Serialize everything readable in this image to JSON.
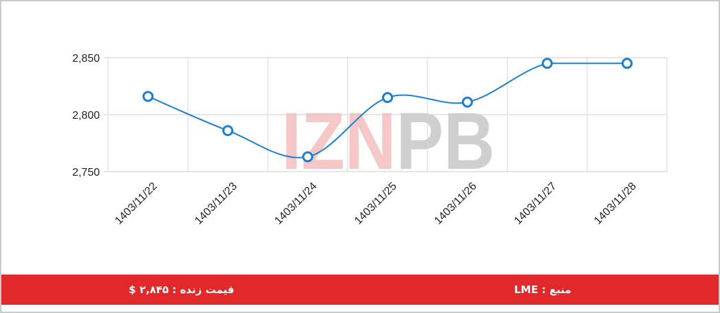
{
  "chart_data": {
    "type": "line",
    "categories": [
      "1403/11/22",
      "1403/11/23",
      "1403/11/24",
      "1403/11/25",
      "1403/11/26",
      "1403/11/27",
      "1403/11/28"
    ],
    "values": [
      2816,
      2786,
      2763,
      2815,
      2811,
      2845,
      2845
    ],
    "ylim": [
      2750,
      2850
    ],
    "yticks": [
      2750,
      2800,
      2850
    ],
    "ytick_labels": [
      "2,750",
      "2,800",
      "2,850"
    ],
    "grid": true,
    "smooth": true,
    "line_color": "#1a7fd4",
    "marker_fill": "#ffffff",
    "watermark": "IZNPB",
    "watermark_colors": {
      "left": "#f5c7c7",
      "right": "#cfcfcf"
    }
  },
  "footer": {
    "background": "#e1292b",
    "price_text": "قیمت زنده : ۲,۸۴۵ $",
    "source_text": "منبع : LME"
  }
}
